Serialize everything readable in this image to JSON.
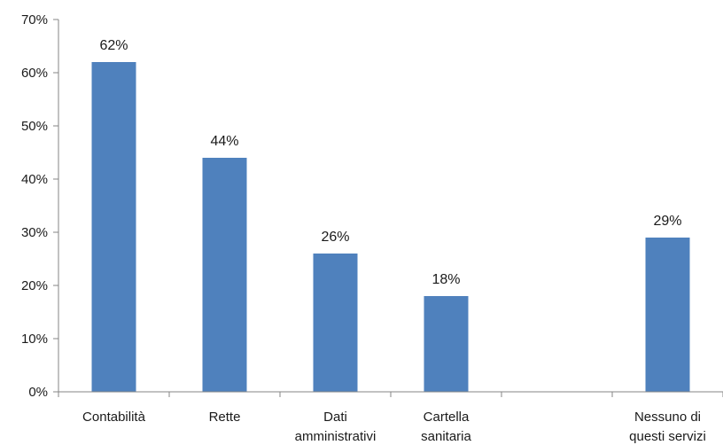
{
  "chart_data": {
    "type": "bar",
    "title": "",
    "xlabel": "",
    "ylabel": "",
    "ylim": [
      0,
      70
    ],
    "yticks": [
      "0%",
      "10%",
      "20%",
      "30%",
      "40%",
      "50%",
      "60%",
      "70%"
    ],
    "categories": [
      [
        "Contabilità"
      ],
      [
        "Rette"
      ],
      [
        "Dati",
        "amministrativi"
      ],
      [
        "Cartella",
        "sanitaria"
      ],
      [
        ""
      ],
      [
        "Nessuno di",
        "questi servizi"
      ]
    ],
    "values": [
      62,
      44,
      26,
      18,
      null,
      29
    ],
    "data_labels": [
      "62%",
      "44%",
      "26%",
      "18%",
      "",
      "29%"
    ],
    "bar_color": "#4F81BD",
    "grid": false,
    "legend": "none"
  }
}
